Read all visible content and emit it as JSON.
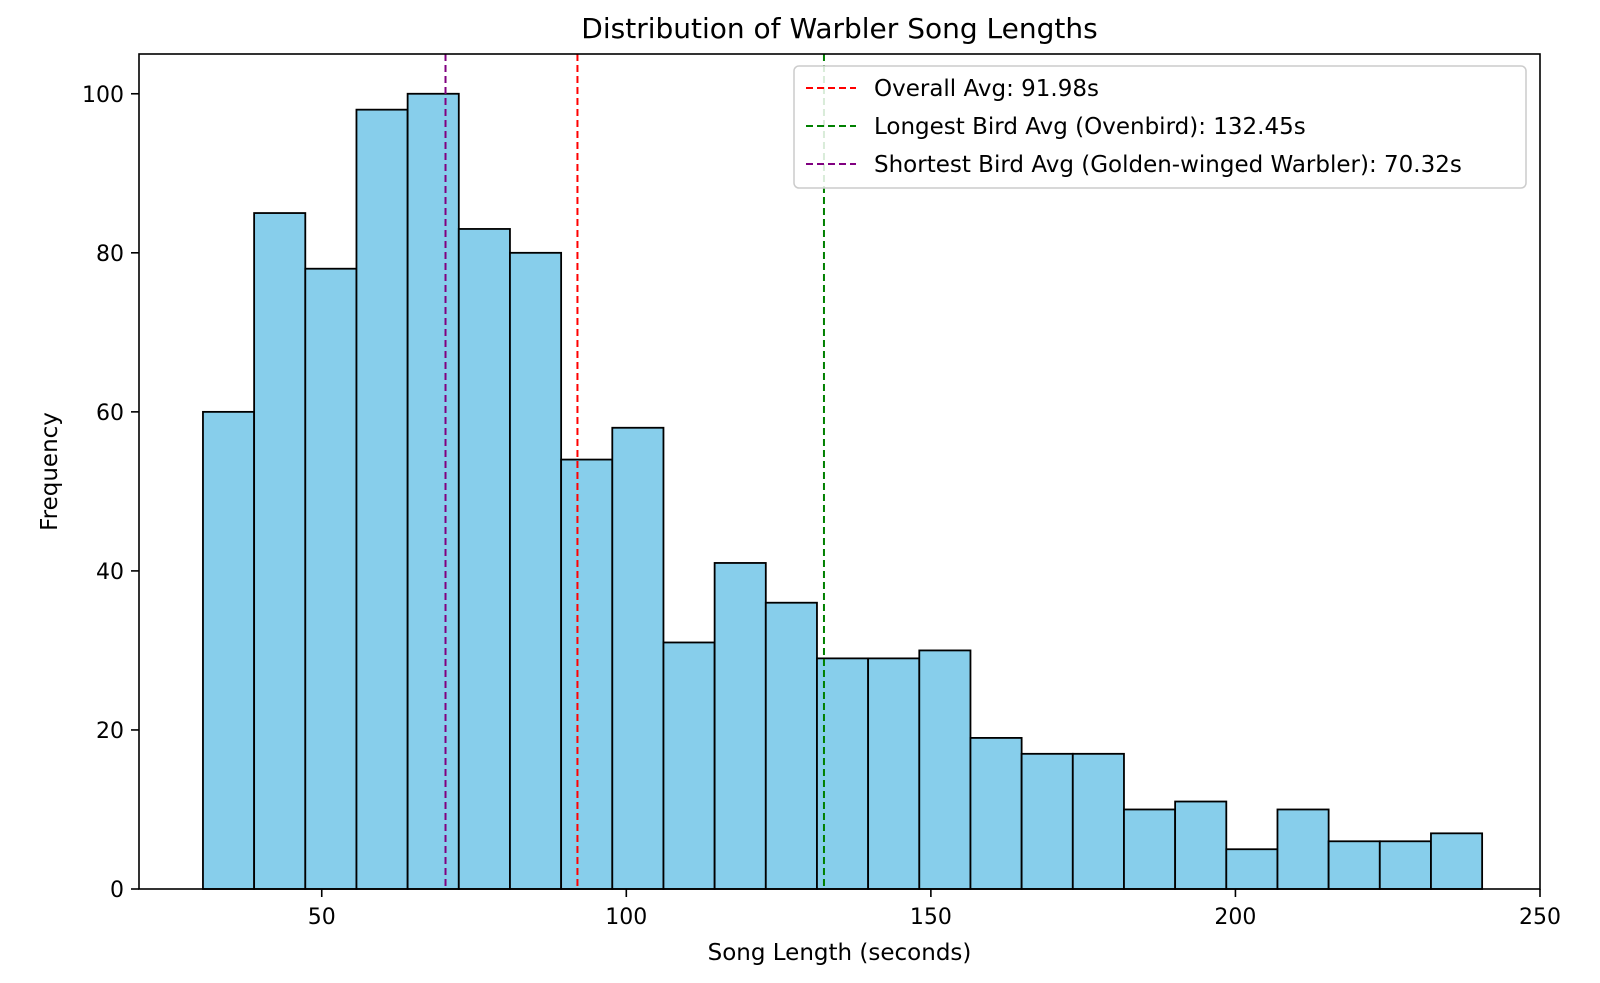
{
  "chart_data": {
    "type": "bar",
    "subtype": "histogram",
    "title": "Distribution of Warbler Song Lengths",
    "xlabel": "Song Length (seconds)",
    "ylabel": "Frequency",
    "xlim": [
      20,
      250
    ],
    "ylim": [
      0,
      105
    ],
    "xticks": [
      50,
      100,
      150,
      200,
      250
    ],
    "yticks": [
      0,
      20,
      40,
      60,
      80,
      100
    ],
    "grid": false,
    "bar_color": "#87CEEB",
    "bar_edge_color": "#000000",
    "bins": [
      {
        "start": 30.5,
        "end": 38.9,
        "count": 60
      },
      {
        "start": 38.9,
        "end": 47.3,
        "count": 85
      },
      {
        "start": 47.3,
        "end": 55.7,
        "count": 78
      },
      {
        "start": 55.7,
        "end": 64.1,
        "count": 98
      },
      {
        "start": 64.1,
        "end": 72.5,
        "count": 100
      },
      {
        "start": 72.5,
        "end": 80.9,
        "count": 83
      },
      {
        "start": 80.9,
        "end": 89.3,
        "count": 80
      },
      {
        "start": 89.3,
        "end": 97.7,
        "count": 54
      },
      {
        "start": 97.7,
        "end": 106.1,
        "count": 58
      },
      {
        "start": 106.1,
        "end": 114.5,
        "count": 31
      },
      {
        "start": 114.5,
        "end": 122.9,
        "count": 41
      },
      {
        "start": 122.9,
        "end": 131.3,
        "count": 36
      },
      {
        "start": 131.3,
        "end": 139.7,
        "count": 29
      },
      {
        "start": 139.7,
        "end": 148.1,
        "count": 29
      },
      {
        "start": 148.1,
        "end": 156.5,
        "count": 30
      },
      {
        "start": 156.5,
        "end": 164.9,
        "count": 19
      },
      {
        "start": 164.9,
        "end": 173.3,
        "count": 17
      },
      {
        "start": 173.3,
        "end": 181.7,
        "count": 17
      },
      {
        "start": 181.7,
        "end": 190.1,
        "count": 10
      },
      {
        "start": 190.1,
        "end": 198.5,
        "count": 11
      },
      {
        "start": 198.5,
        "end": 206.9,
        "count": 5
      },
      {
        "start": 206.9,
        "end": 215.3,
        "count": 10
      },
      {
        "start": 215.3,
        "end": 223.7,
        "count": 6
      },
      {
        "start": 223.7,
        "end": 232.1,
        "count": 6
      },
      {
        "start": 232.1,
        "end": 240.5,
        "count": 7
      }
    ],
    "reference_lines": [
      {
        "name": "Overall Avg: 91.98s",
        "x": 91.98,
        "color": "#ff0000"
      },
      {
        "name": "Longest Bird Avg (Ovenbird): 132.45s",
        "x": 132.45,
        "color": "#008000"
      },
      {
        "name": "Shortest Bird Avg (Golden-winged Warbler): 70.32s",
        "x": 70.32,
        "color": "#800080"
      }
    ],
    "legend_position": "top-right"
  }
}
